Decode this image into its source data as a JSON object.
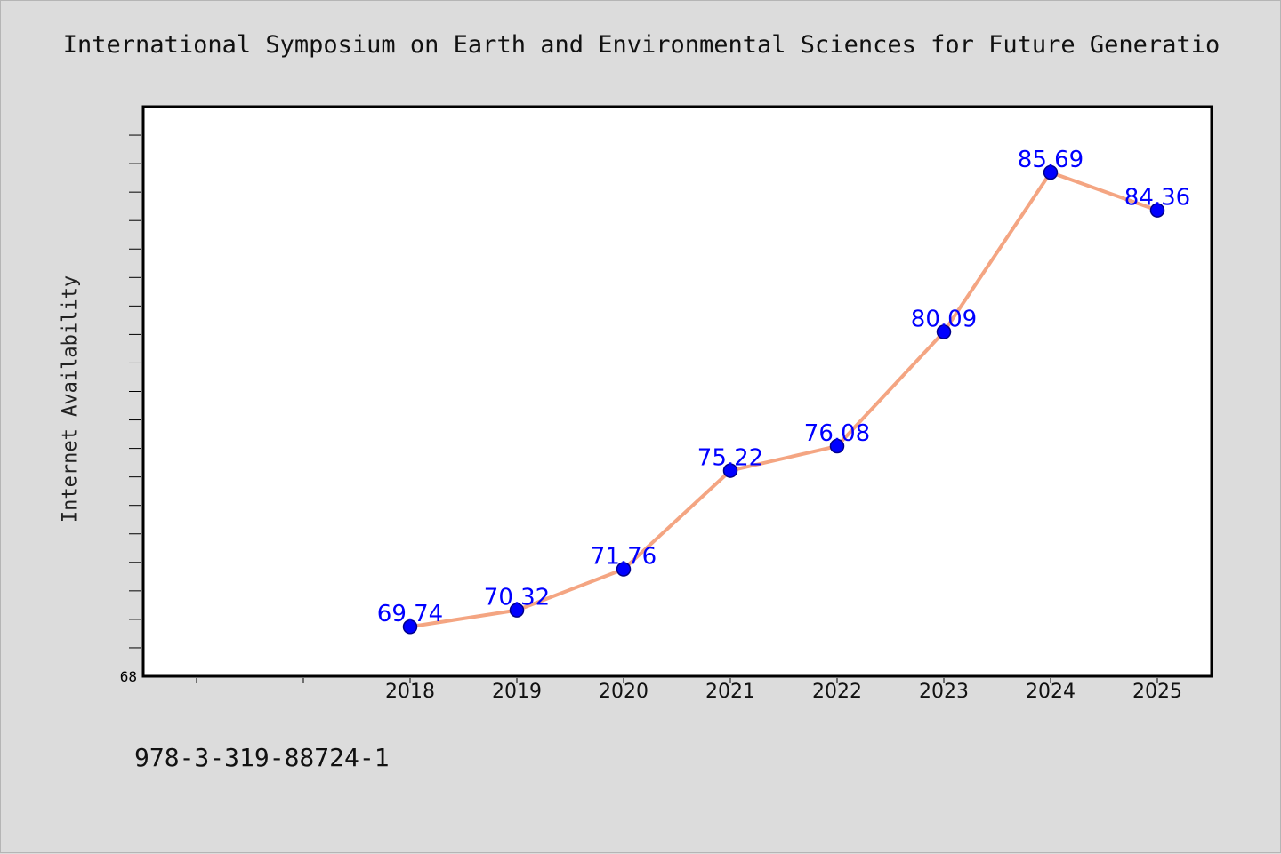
{
  "page": {
    "title": "International Symposium on Earth and Environmental Sciences for Future Generatio",
    "footer": "978-3-319-88724-1"
  },
  "chart_data": {
    "type": "line",
    "title": "International Symposium on Earth and Environmental Sciences for Future Generatio",
    "xlabel": "",
    "ylabel": "Internet Availability",
    "categories": [
      "2018",
      "2019",
      "2020",
      "2021",
      "2022",
      "2023",
      "2024",
      "2025"
    ],
    "series": [
      {
        "values": [
          69.74,
          70.32,
          71.76,
          75.22,
          76.08,
          80.09,
          85.69,
          84.36
        ]
      }
    ],
    "data_labels": [
      "69.74",
      "70.32",
      "71.76",
      "75.22",
      "76.08",
      "80.09",
      "85.69",
      "84.36"
    ],
    "ytick_labels": [
      "68"
    ],
    "ylim": [
      68,
      88
    ],
    "grid": false,
    "legend": "none",
    "colors": {
      "line": "#f4a582",
      "marker": "#0000ff",
      "marker_edge": "#00008b",
      "label": "#0000ff"
    }
  }
}
